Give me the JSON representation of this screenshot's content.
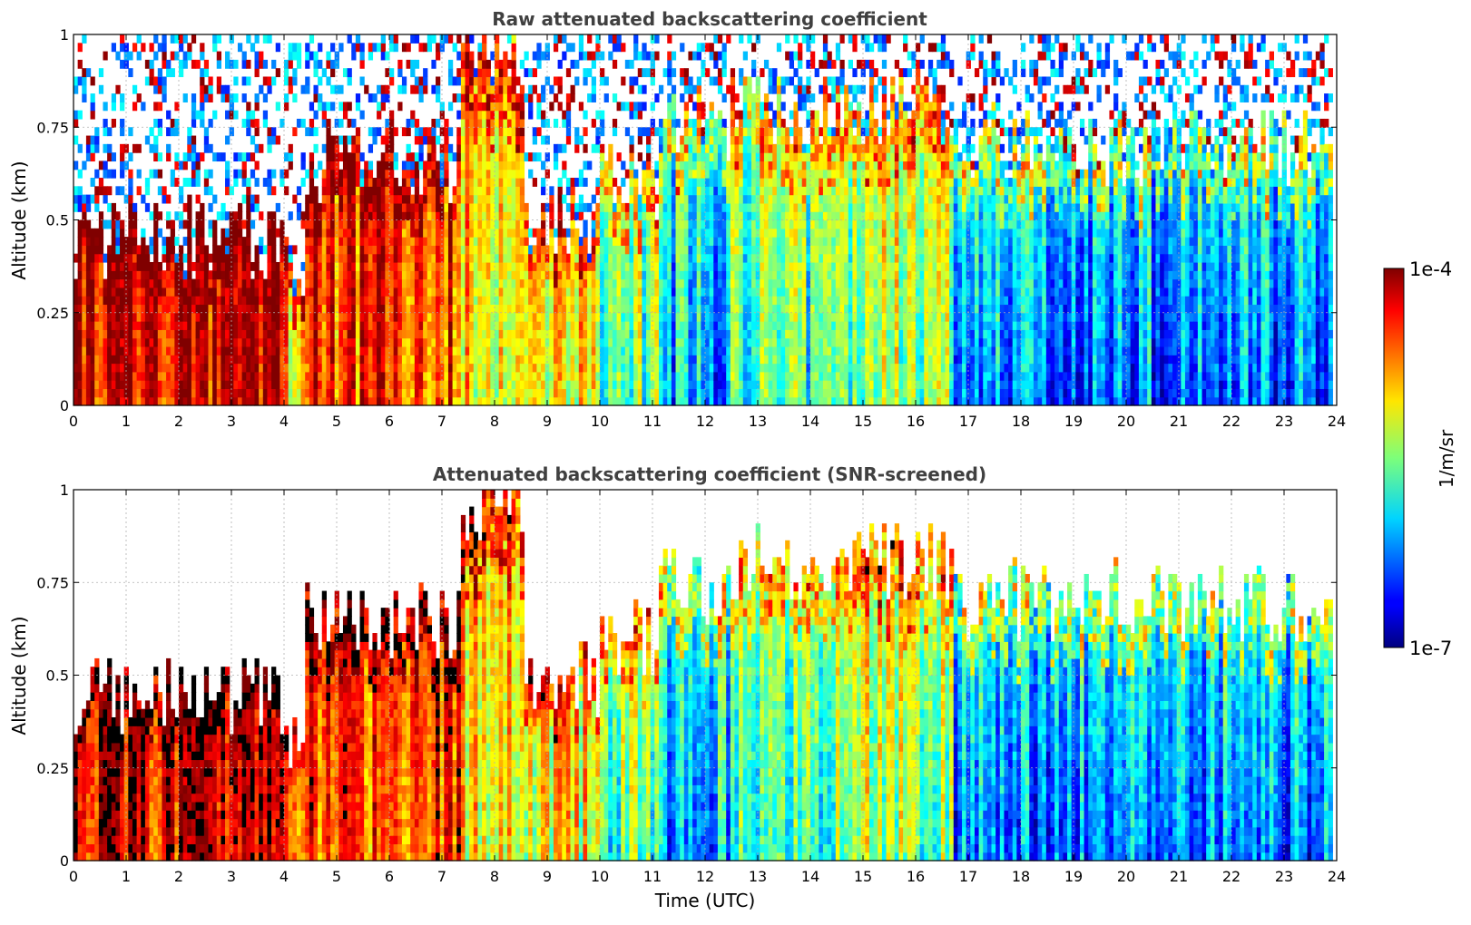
{
  "chart_data": [
    {
      "type": "heatmap",
      "title": "Raw attenuated backscattering coefficient",
      "xlabel": "",
      "ylabel": "Altitude (km)",
      "xlim": [
        0,
        24
      ],
      "ylim": [
        0,
        1
      ],
      "x_ticks": [
        "0",
        "1",
        "2",
        "3",
        "4",
        "5",
        "6",
        "7",
        "8",
        "9",
        "10",
        "11",
        "12",
        "13",
        "14",
        "15",
        "16",
        "17",
        "18",
        "19",
        "20",
        "21",
        "22",
        "23",
        "24"
      ],
      "y_ticks": [
        "0",
        "0.25",
        "0.5",
        "0.75",
        "1"
      ],
      "grid": true,
      "screened": false
    },
    {
      "type": "heatmap",
      "title": "Attenuated backscattering coefficient (SNR-screened)",
      "xlabel": "Time (UTC)",
      "ylabel": "Altitude (km)",
      "xlim": [
        0,
        24
      ],
      "ylim": [
        0,
        1
      ],
      "x_ticks": [
        "0",
        "1",
        "2",
        "3",
        "4",
        "5",
        "6",
        "7",
        "8",
        "9",
        "10",
        "11",
        "12",
        "13",
        "14",
        "15",
        "16",
        "17",
        "18",
        "19",
        "20",
        "21",
        "22",
        "23",
        "24"
      ],
      "y_ticks": [
        "0",
        "0.25",
        "0.5",
        "0.75",
        "1"
      ],
      "grid": true,
      "screened": true
    }
  ],
  "colorbar": {
    "label": "1/m/sr",
    "max_label": "1e-4",
    "min_label": "1e-7",
    "colormap": "jet",
    "scale": "log"
  },
  "profile_segments": {
    "units": "UTC hours / km",
    "segments": [
      {
        "t0": 0.0,
        "t1": 4.1,
        "top": 0.45,
        "core": 0.9
      },
      {
        "t0": 4.1,
        "t1": 4.4,
        "top": 0.32,
        "core": 0.7
      },
      {
        "t0": 4.4,
        "t1": 7.4,
        "top": 0.65,
        "core": 0.8
      },
      {
        "t0": 7.4,
        "t1": 8.6,
        "top": 0.95,
        "core": 0.65
      },
      {
        "t0": 8.6,
        "t1": 10.0,
        "top": 0.5,
        "core": 0.6
      },
      {
        "t0": 10.0,
        "t1": 11.1,
        "top": 0.6,
        "core": 0.45
      },
      {
        "t0": 11.1,
        "t1": 12.5,
        "top": 0.75,
        "core": 0.28
      },
      {
        "t0": 12.5,
        "t1": 14.5,
        "top": 0.8,
        "core": 0.4
      },
      {
        "t0": 14.5,
        "t1": 16.7,
        "top": 0.8,
        "core": 0.5
      },
      {
        "t0": 16.7,
        "t1": 24.0,
        "top": 0.7,
        "core": 0.22
      }
    ]
  }
}
